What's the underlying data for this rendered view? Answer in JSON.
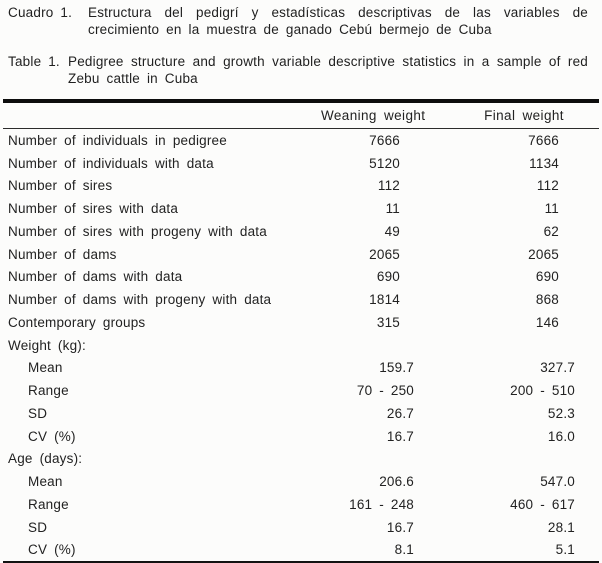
{
  "captions": {
    "es": {
      "label": "Cuadro 1.",
      "text": "Estructura del pedigrí y estadísticas descriptivas de las variables de crecimiento en la muestra de ganado Cebú bermejo de Cuba"
    },
    "en": {
      "label": "Table 1.",
      "text": "Pedigree structure and growth variable descriptive statistics in a sample of red Zebu cattle in Cuba"
    }
  },
  "table": {
    "columns": [
      "Weaning weight",
      "Final weight"
    ],
    "rows": [
      {
        "label": "Number of individuals in pedigree",
        "values": [
          "7666",
          "7666"
        ]
      },
      {
        "label": "Number of individuals with data",
        "values": [
          "5120",
          "1134"
        ]
      },
      {
        "label": "Number of sires",
        "values": [
          "112",
          "112"
        ]
      },
      {
        "label": "Number of sires with data",
        "values": [
          "11",
          "11"
        ]
      },
      {
        "label": "Number of sires with progeny with data",
        "values": [
          "49",
          "62"
        ]
      },
      {
        "label": "Number of dams",
        "values": [
          "2065",
          "2065"
        ]
      },
      {
        "label": "Number of dams with data",
        "values": [
          "690",
          "690"
        ]
      },
      {
        "label": "Number of dams with progeny with data",
        "values": [
          "1814",
          "868"
        ]
      },
      {
        "label": "Contemporary groups",
        "values": [
          "315",
          "146"
        ]
      },
      {
        "label": "Weight (kg):",
        "values": [
          "",
          ""
        ]
      },
      {
        "label": "Mean",
        "values": [
          "159.7",
          "327.7"
        ]
      },
      {
        "label": "Range",
        "values": [
          "70 - 250",
          "200 - 510"
        ]
      },
      {
        "label": "SD",
        "values": [
          "26.7",
          "52.3"
        ]
      },
      {
        "label": "CV (%)",
        "values": [
          "16.7",
          "16.0"
        ]
      },
      {
        "label": "Age (days):",
        "values": [
          "",
          ""
        ]
      },
      {
        "label": "Mean",
        "values": [
          "206.6",
          "547.0"
        ]
      },
      {
        "label": "Range",
        "values": [
          "161 - 248",
          "460 - 617"
        ]
      },
      {
        "label": "SD",
        "values": [
          "16.7",
          "28.1"
        ]
      },
      {
        "label": "CV (%)",
        "values": [
          "8.1",
          "5.1"
        ]
      }
    ]
  }
}
